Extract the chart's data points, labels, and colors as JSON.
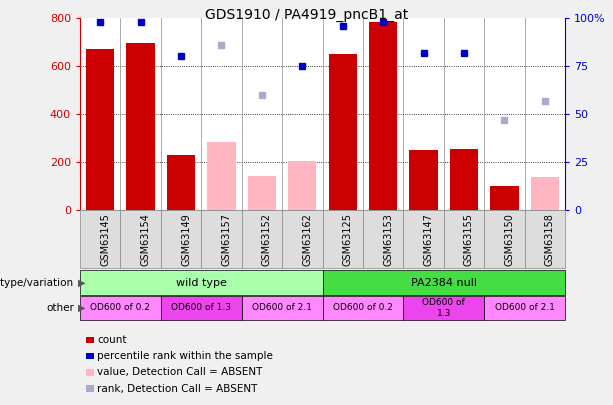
{
  "title": "GDS1910 / PA4919_pncB1_at",
  "samples": [
    "GSM63145",
    "GSM63154",
    "GSM63149",
    "GSM63157",
    "GSM63152",
    "GSM63162",
    "GSM63125",
    "GSM63153",
    "GSM63147",
    "GSM63155",
    "GSM63150",
    "GSM63158"
  ],
  "count_values": [
    670,
    695,
    230,
    null,
    null,
    null,
    648,
    785,
    250,
    253,
    100,
    null
  ],
  "count_absent": [
    null,
    null,
    null,
    285,
    140,
    205,
    null,
    null,
    null,
    null,
    null,
    138
  ],
  "percentile_present": [
    98,
    98,
    80,
    null,
    null,
    75,
    96,
    98,
    82,
    82,
    null,
    null
  ],
  "percentile_absent": [
    null,
    null,
    null,
    86,
    60,
    null,
    null,
    null,
    null,
    null,
    47,
    57
  ],
  "genotype_groups": [
    {
      "label": "wild type",
      "start": 0,
      "end": 6,
      "color": "#AAFFAA"
    },
    {
      "label": "PA2384 null",
      "start": 6,
      "end": 12,
      "color": "#44DD44"
    }
  ],
  "other_groups": [
    {
      "label": "OD600 of 0.2",
      "start": 0,
      "end": 2,
      "color": "#FF88FF"
    },
    {
      "label": "OD600 of 1.3",
      "start": 2,
      "end": 4,
      "color": "#EE44EE"
    },
    {
      "label": "OD600 of 2.1",
      "start": 4,
      "end": 6,
      "color": "#FF88FF"
    },
    {
      "label": "OD600 of 0.2",
      "start": 6,
      "end": 8,
      "color": "#FF88FF"
    },
    {
      "label": "OD600 of\n1.3",
      "start": 8,
      "end": 10,
      "color": "#EE44EE"
    },
    {
      "label": "OD600 of 2.1",
      "start": 10,
      "end": 12,
      "color": "#FF88FF"
    }
  ],
  "ylim_left": [
    0,
    800
  ],
  "ylim_right": [
    0,
    100
  ],
  "yticks_left": [
    0,
    200,
    400,
    600,
    800
  ],
  "yticks_right": [
    0,
    25,
    50,
    75,
    100
  ],
  "bar_color_present": "#CC0000",
  "bar_color_absent": "#FFB6C1",
  "dot_color_present": "#0000CC",
  "dot_color_absent": "#AAAACC",
  "bg_color": "#F0F0F0",
  "plot_bg": "#FFFFFF",
  "legend_items": [
    {
      "label": "count",
      "color": "#CC0000"
    },
    {
      "label": "percentile rank within the sample",
      "color": "#0000CC"
    },
    {
      "label": "value, Detection Call = ABSENT",
      "color": "#FFB6C1"
    },
    {
      "label": "rank, Detection Call = ABSENT",
      "color": "#AAAACC"
    }
  ]
}
